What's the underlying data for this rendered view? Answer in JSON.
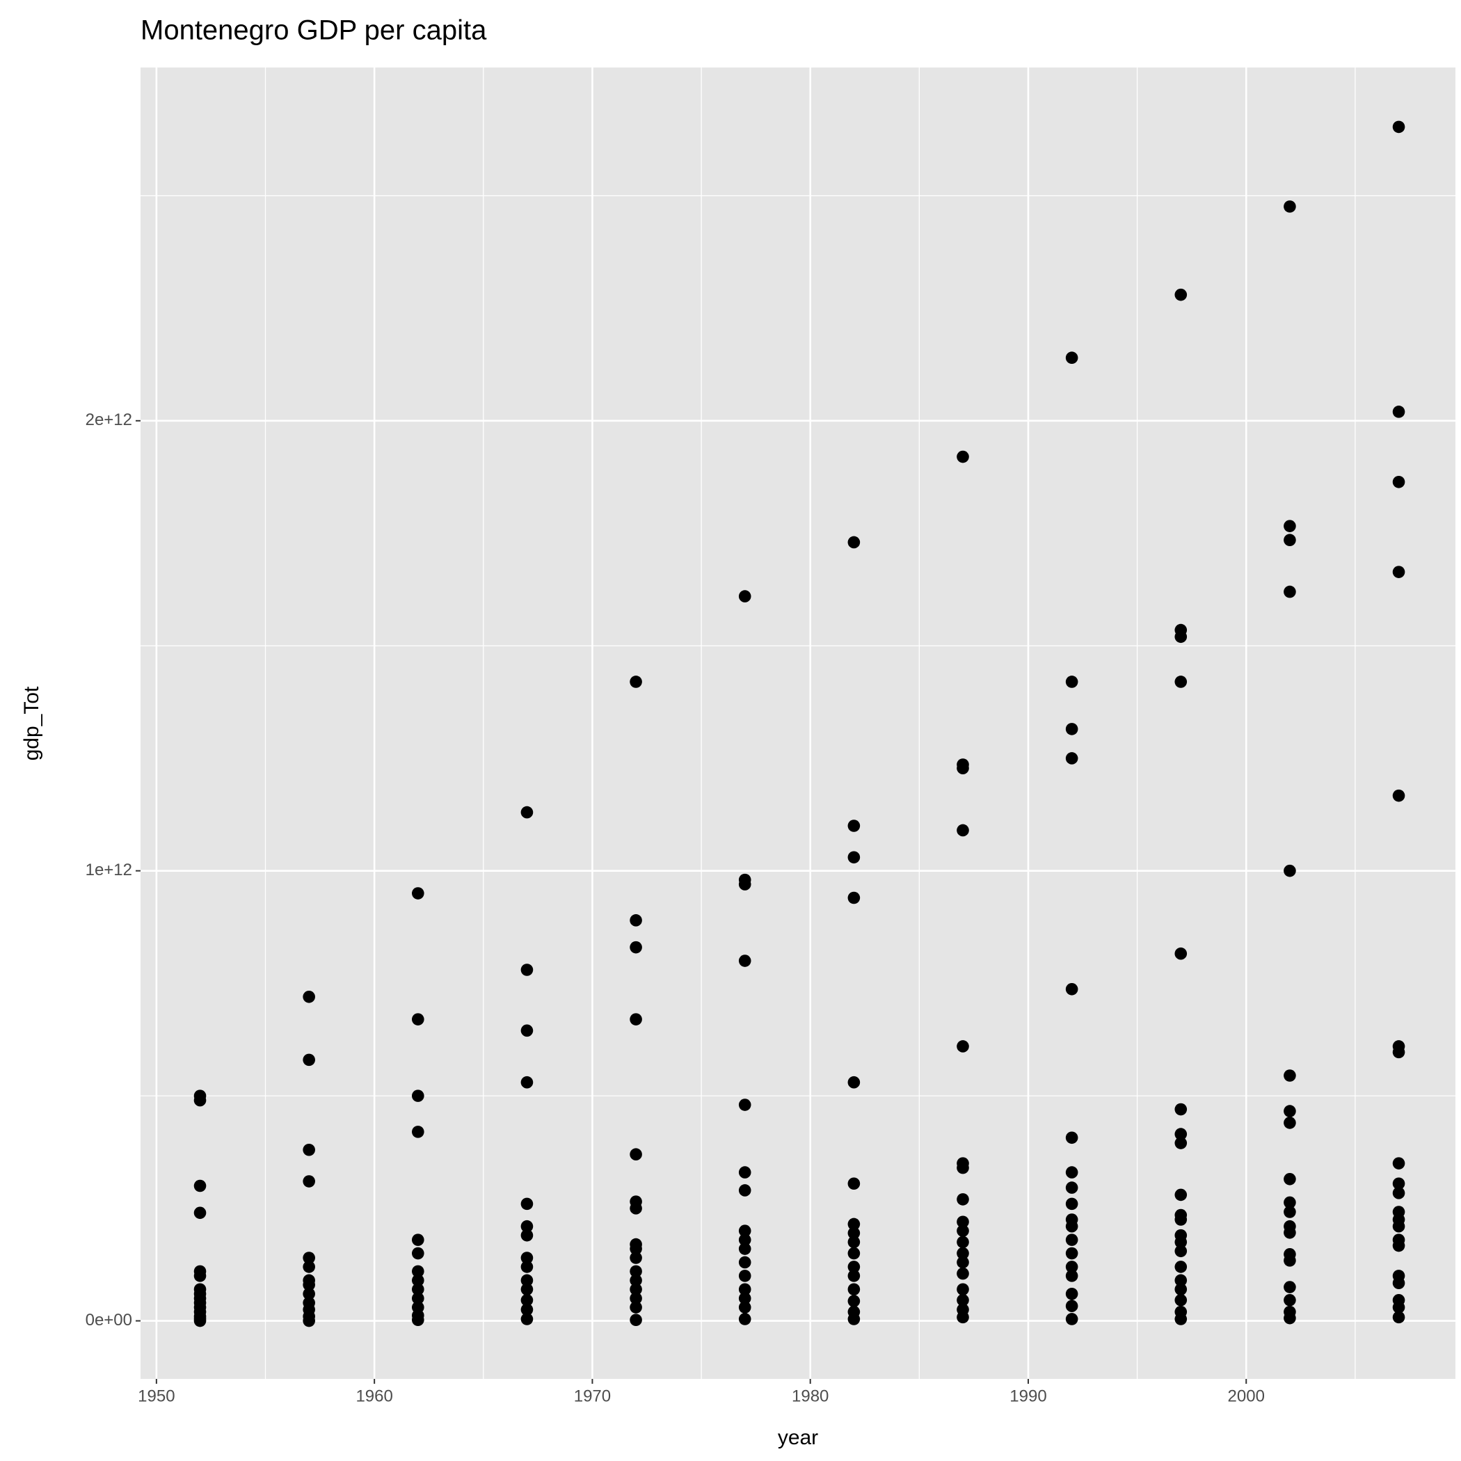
{
  "chart_data": {
    "type": "scatter",
    "title": "Montenegro GDP per capita",
    "x_label": "year",
    "y_label": "gdp_Tot",
    "color": "#000000",
    "grid": true,
    "xlim": [
      1949.27,
      2009.6
    ],
    "ylim": [
      -129000000000.0,
      2785000000000.0
    ],
    "xticks": [
      1950,
      1960,
      1970,
      1980,
      1990,
      2000
    ],
    "yticks": [
      {
        "value": 0,
        "label": "0e+00"
      },
      {
        "value": 1000000000000.0,
        "label": "1e+12"
      },
      {
        "value": 2000000000000.0,
        "label": "2e+12"
      }
    ],
    "x_minor_grid": [
      1955,
      1965,
      1975,
      1985,
      1995,
      2005
    ],
    "y_minor_grid": [
      500000000000.0,
      1500000000000.0,
      2500000000000.0
    ],
    "x": [
      1952,
      1952,
      1952,
      1952,
      1952,
      1952,
      1952,
      1952,
      1952,
      1952,
      1952,
      1952,
      1952,
      1952,
      1952,
      1957,
      1957,
      1957,
      1957,
      1957,
      1957,
      1957,
      1957,
      1957,
      1957,
      1957,
      1957,
      1957,
      1962,
      1962,
      1962,
      1962,
      1962,
      1962,
      1962,
      1962,
      1962,
      1962,
      1962,
      1962,
      1962,
      1967,
      1967,
      1967,
      1967,
      1967,
      1967,
      1967,
      1967,
      1967,
      1967,
      1967,
      1967,
      1967,
      1967,
      1972,
      1972,
      1972,
      1972,
      1972,
      1972,
      1972,
      1972,
      1972,
      1972,
      1972,
      1972,
      1972,
      1972,
      1972,
      1972,
      1977,
      1977,
      1977,
      1977,
      1977,
      1977,
      1977,
      1977,
      1977,
      1977,
      1977,
      1977,
      1977,
      1977,
      1977,
      1977,
      1982,
      1982,
      1982,
      1982,
      1982,
      1982,
      1982,
      1982,
      1982,
      1982,
      1982,
      1982,
      1982,
      1982,
      1982,
      1982,
      1987,
      1987,
      1987,
      1987,
      1987,
      1987,
      1987,
      1987,
      1987,
      1987,
      1987,
      1987,
      1987,
      1987,
      1987,
      1987,
      1987,
      1987,
      1992,
      1992,
      1992,
      1992,
      1992,
      1992,
      1992,
      1992,
      1992,
      1992,
      1992,
      1992,
      1992,
      1992,
      1992,
      1992,
      1992,
      1992,
      1997,
      1997,
      1997,
      1997,
      1997,
      1997,
      1997,
      1997,
      1997,
      1997,
      1997,
      1997,
      1997,
      1997,
      1997,
      1997,
      1997,
      1997,
      1997,
      1997,
      2002,
      2002,
      2002,
      2002,
      2002,
      2002,
      2002,
      2002,
      2002,
      2002,
      2002,
      2002,
      2002,
      2002,
      2002,
      2002,
      2002,
      2002,
      2002,
      2007,
      2007,
      2007,
      2007,
      2007,
      2007,
      2007,
      2007,
      2007,
      2007,
      2007,
      2007,
      2007,
      2007,
      2007,
      2007,
      2007,
      2007,
      2007,
      2007
    ],
    "values": [
      500000000000.0,
      490000000000.0,
      300000000000.0,
      240000000000.0,
      110000000000.0,
      100000000000.0,
      70000000000.0,
      60000000000.0,
      50000000000.0,
      40000000000.0,
      30000000000.0,
      20000000000.0,
      10000000000.0,
      5000000000.0,
      0,
      720000000000.0,
      580000000000.0,
      380000000000.0,
      310000000000.0,
      140000000000.0,
      120000000000.0,
      90000000000.0,
      80000000000.0,
      60000000000.0,
      40000000000.0,
      25000000000.0,
      10000000000.0,
      0,
      950000000000.0,
      670000000000.0,
      500000000000.0,
      420000000000.0,
      180000000000.0,
      150000000000.0,
      110000000000.0,
      90000000000.0,
      70000000000.0,
      50000000000.0,
      30000000000.0,
      12000000000.0,
      2000000000.0,
      1130000000000.0,
      780000000000.0,
      645000000000.0,
      530000000000.0,
      260000000000.0,
      210000000000.0,
      190000000000.0,
      140000000000.0,
      120000000000.0,
      90000000000.0,
      70000000000.0,
      46000000000.0,
      25000000000.0,
      4000000000.0,
      1420000000000.0,
      890000000000.0,
      830000000000.0,
      670000000000.0,
      370000000000.0,
      265000000000.0,
      250000000000.0,
      170000000000.0,
      160000000000.0,
      140000000000.0,
      110000000000.0,
      90000000000.0,
      70000000000.0,
      50000000000.0,
      30000000000.0,
      2000000000.0,
      1610000000000.0,
      980000000000.0,
      970000000000.0,
      800000000000.0,
      480000000000.0,
      330000000000.0,
      290000000000.0,
      200000000000.0,
      180000000000.0,
      160000000000.0,
      130000000000.0,
      100000000000.0,
      70000000000.0,
      50000000000.0,
      30000000000.0,
      4000000000.0,
      1730000000000.0,
      1100000000000.0,
      1030000000000.0,
      940000000000.0,
      530000000000.0,
      305000000000.0,
      215000000000.0,
      195000000000.0,
      175000000000.0,
      150000000000.0,
      120000000000.0,
      100000000000.0,
      70000000000.0,
      44000000000.0,
      20000000000.0,
      4000000000.0,
      1920000000000.0,
      1236000000000.0,
      1228000000000.0,
      1090000000000.0,
      610000000000.0,
      350000000000.0,
      340000000000.0,
      270000000000.0,
      220000000000.0,
      200000000000.0,
      175000000000.0,
      150000000000.0,
      130000000000.0,
      105000000000.0,
      70000000000.0,
      46000000000.0,
      25000000000.0,
      8000000000.0,
      2140000000000.0,
      1420000000000.0,
      1315000000000.0,
      1250000000000.0,
      737000000000.0,
      407000000000.0,
      330000000000.0,
      296000000000.0,
      260000000000.0,
      225000000000.0,
      210000000000.0,
      180000000000.0,
      150000000000.0,
      120000000000.0,
      100000000000.0,
      60000000000.0,
      33000000000.0,
      4000000000.0,
      2280000000000.0,
      1535000000000.0,
      1520000000000.0,
      1420000000000.0,
      816000000000.0,
      470000000000.0,
      415000000000.0,
      395000000000.0,
      280000000000.0,
      235000000000.0,
      225000000000.0,
      190000000000.0,
      175000000000.0,
      155000000000.0,
      120000000000.0,
      90000000000.0,
      70000000000.0,
      46000000000.0,
      20000000000.0,
      4000000000.0,
      2476000000000.0,
      1766000000000.0,
      1735000000000.0,
      1620000000000.0,
      1000000000000.0,
      545000000000.0,
      466000000000.0,
      440000000000.0,
      315000000000.0,
      263000000000.0,
      242000000000.0,
      210000000000.0,
      196000000000.0,
      148000000000.0,
      134000000000.0,
      75000000000.0,
      46000000000.0,
      20000000000.0,
      6000000000.0,
      2653000000000.0,
      2020000000000.0,
      1864000000000.0,
      1664000000000.0,
      1167000000000.0,
      610000000000.0,
      597000000000.0,
      350000000000.0,
      305000000000.0,
      284000000000.0,
      242000000000.0,
      225000000000.0,
      210000000000.0,
      180000000000.0,
      167000000000.0,
      100000000000.0,
      84000000000.0,
      46000000000.0,
      30000000000.0,
      8000000000.0
    ]
  }
}
